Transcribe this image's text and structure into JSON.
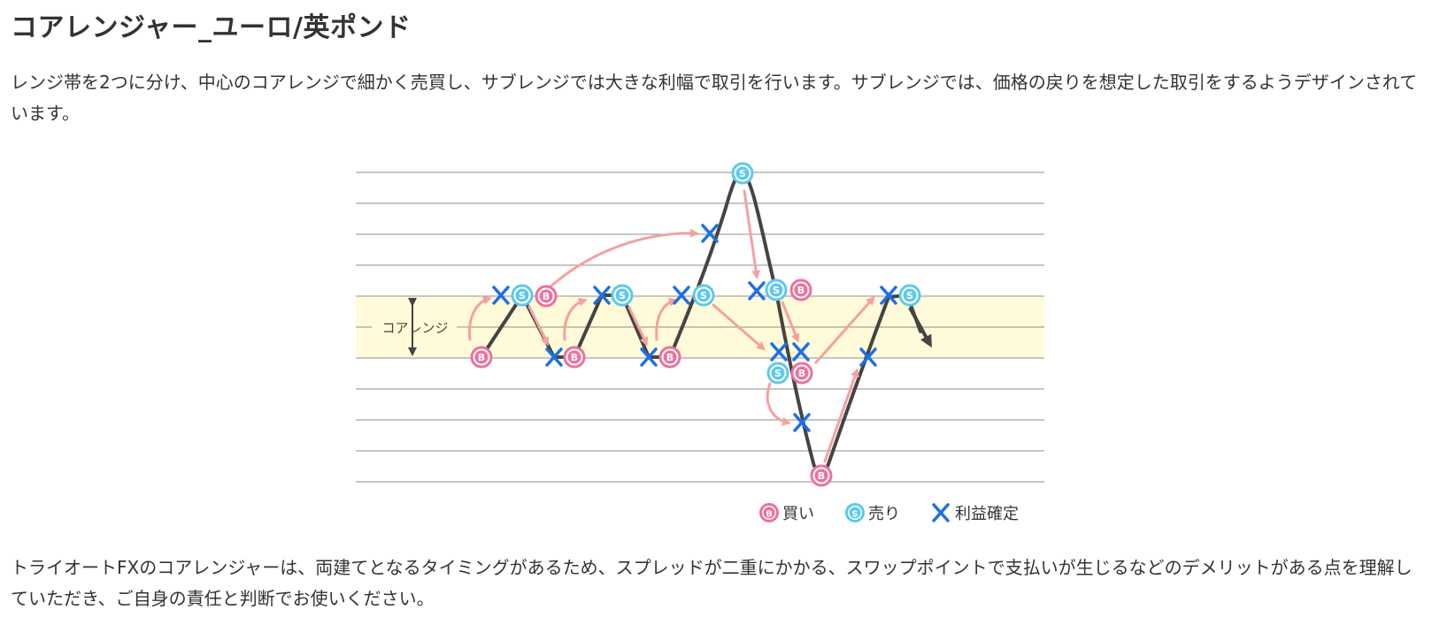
{
  "title": "コアレンジャー_ユーロ/英ポンド",
  "paragraph1": "レンジ帯を2つに分け、中心のコアレンジで細かく売買し、サブレンジでは大きな利幅で取引を行います。サブレンジでは、価格の戻りを想定した取引をするようデザインされています。",
  "diagram": {
    "core_range_label": "コアレンジ",
    "buy_marker_letter": "B",
    "sell_marker_letter": "S",
    "legend": {
      "buy_label": "買い",
      "sell_label": "売り",
      "take_profit_label": "利益確定"
    },
    "colors": {
      "buy": "#f0709a",
      "sell": "#5ec8ee",
      "take_profit": "#1e6fe6",
      "arrow": "#f5a0a0",
      "price_line": "#444444",
      "core_band": "#fffbd8",
      "grid": "#888888"
    },
    "icons": [
      "buy-marker-icon",
      "sell-marker-icon",
      "take-profit-x-icon",
      "trend-arrow-icon"
    ]
  },
  "paragraph2": "トライオートFXのコアレンジャーは、両建てとなるタイミングがあるため、スプレッドが二重にかかる、スワップポイントで支払いが生じるなどのデメリットがある点を理解していただき、ご自身の責任と判断でお使いください。"
}
